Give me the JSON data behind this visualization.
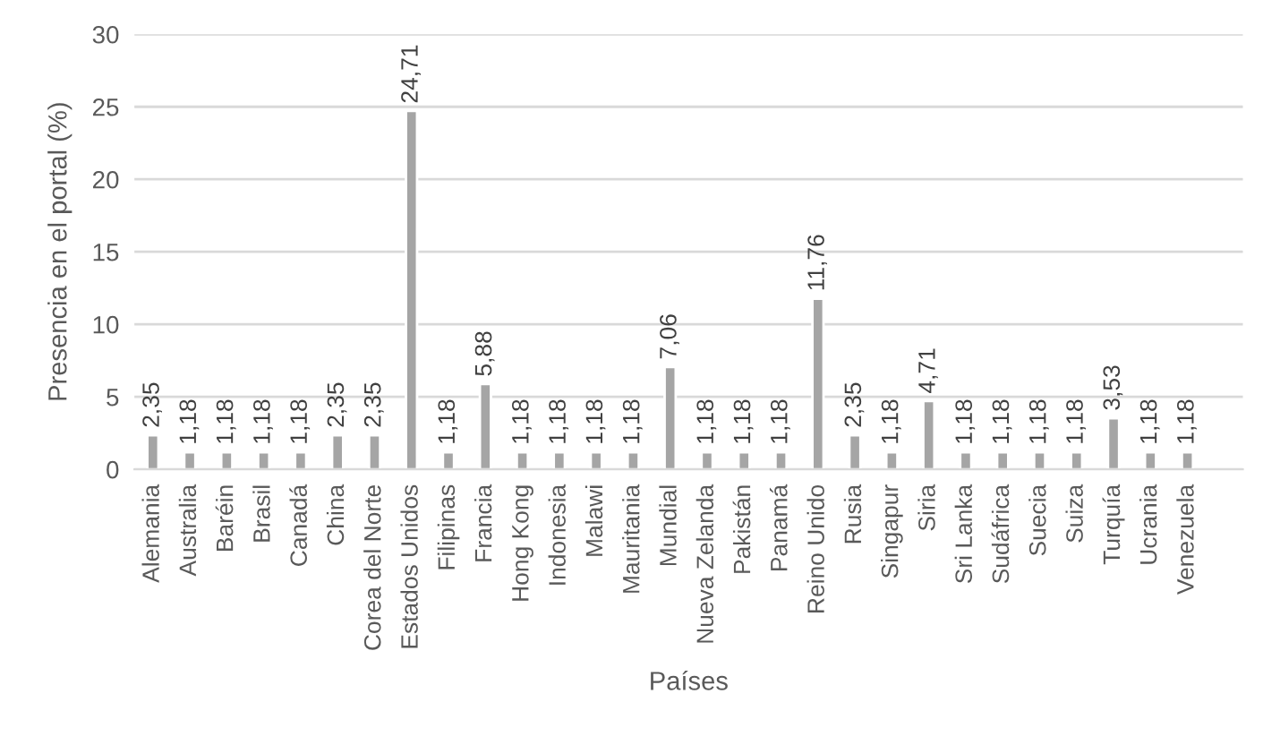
{
  "chart_data": {
    "type": "bar",
    "xlabel": "Países",
    "ylabel": "Presencia en el portal (%)",
    "categories": [
      "Alemania",
      "Australia",
      "Baréin",
      "Brasil",
      "Canadá",
      "China",
      "Corea del Norte",
      "Estados Unidos",
      "Filipinas",
      "Francia",
      "Hong Kong",
      "Indonesia",
      "Malawi",
      "Mauritania",
      "Mundial",
      "Nueva Zelanda",
      "Pakistán",
      "Panamá",
      "Reino Unido",
      "Rusia",
      "Singapur",
      "Siria",
      "Sri Lanka",
      "Sudáfrica",
      "Suecia",
      "Suiza",
      "Turquía",
      "Ucrania",
      "Venezuela"
    ],
    "values": [
      2.35,
      1.18,
      1.18,
      1.18,
      1.18,
      2.35,
      2.35,
      24.71,
      1.18,
      5.88,
      1.18,
      1.18,
      1.18,
      1.18,
      7.06,
      1.18,
      1.18,
      1.18,
      11.76,
      2.35,
      1.18,
      4.71,
      1.18,
      1.18,
      1.18,
      1.18,
      3.53,
      1.18,
      1.18
    ],
    "value_labels": [
      "2,35",
      "1,18",
      "1,18",
      "1,18",
      "1,18",
      "2,35",
      "2,35",
      "24,71",
      "1,18",
      "5,88",
      "1,18",
      "1,18",
      "1,18",
      "1,18",
      "7,06",
      "1,18",
      "1,18",
      "1,18",
      "11,76",
      "2,35",
      "1,18",
      "4,71",
      "1,18",
      "1,18",
      "1,18",
      "1,18",
      "3,53",
      "1,18",
      "1,18"
    ],
    "color": "#a5a5a5",
    "ylim": [
      0,
      30
    ],
    "yticks": [
      0,
      5,
      10,
      15,
      20,
      25,
      30
    ],
    "grid": "y"
  }
}
